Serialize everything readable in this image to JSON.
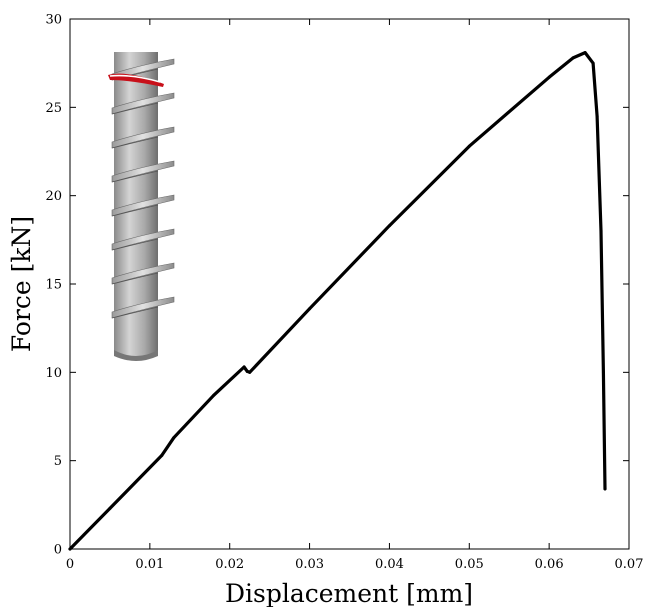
{
  "chart_data": {
    "type": "line",
    "xlabel": "Displacement [mm]",
    "ylabel": "Force [kN]",
    "xlim": [
      0,
      0.07
    ],
    "ylim": [
      0,
      30
    ],
    "x_ticks": [
      0,
      0.01,
      0.02,
      0.03,
      0.04,
      0.05,
      0.06,
      0.07
    ],
    "x_tick_labels": [
      "0",
      "0.01",
      "0.02",
      "0.03",
      "0.04",
      "0.05",
      "0.06",
      "0.07"
    ],
    "y_ticks": [
      0,
      5,
      10,
      15,
      20,
      25,
      30
    ],
    "y_tick_labels": [
      "0",
      "5",
      "10",
      "15",
      "20",
      "25",
      "30"
    ],
    "grid": false,
    "series": [
      {
        "color": "#000000",
        "x": [
          0,
          0.005,
          0.0115,
          0.013,
          0.018,
          0.0218,
          0.0222,
          0.0225,
          0.03,
          0.04,
          0.05,
          0.06,
          0.063,
          0.0645,
          0.0655,
          0.066,
          0.0665,
          0.0668,
          0.067
        ],
        "y": [
          0,
          2.3,
          5.3,
          6.3,
          8.7,
          10.3,
          10.05,
          10.0,
          13.6,
          18.3,
          22.8,
          26.7,
          27.8,
          28.1,
          27.5,
          24.5,
          18.0,
          10.0,
          3.4
        ]
      }
    ],
    "inset_image": "threaded-bar-model"
  }
}
